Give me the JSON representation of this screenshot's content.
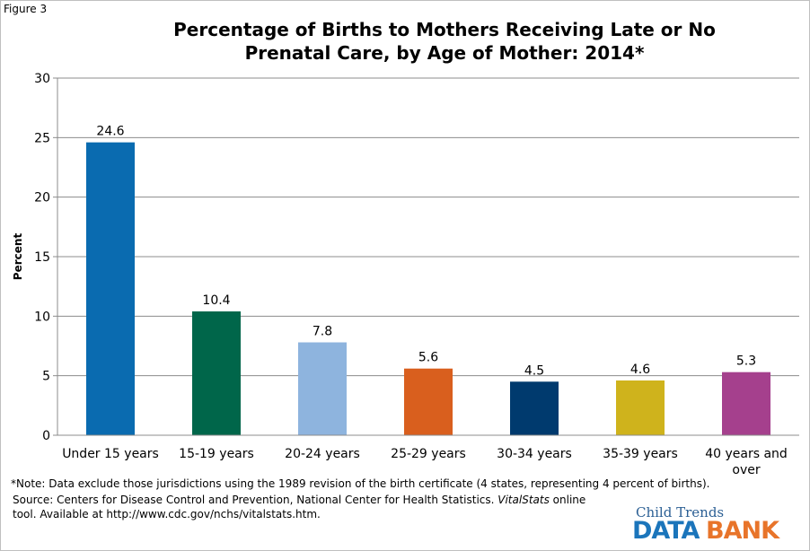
{
  "figure_label": "Figure 3",
  "title_lines": [
    "Percentage of Births to Mothers Receiving Late or No",
    "Prenatal Care, by Age of Mother: 2014*"
  ],
  "note": "*Note: Data exclude those jurisdictions using the 1989 revision of the birth certificate (4 states, representing 4 percent of births).",
  "source": {
    "prefix": "Source: Centers for Disease Control and Prevention, National Center for Health Statistics. ",
    "italic": "VitalStats",
    "suffix": " online",
    "line2": "tool. Available at http://www.cdc.gov/nchs/vitalstats.htm."
  },
  "logo": {
    "top": "Child Trends",
    "left": "DATA",
    "right": "BANK"
  },
  "chart_data": {
    "type": "bar",
    "title": "Percentage of Births to Mothers Receiving Late or No Prenatal Care, by Age of Mother: 2014*",
    "ylabel": "Percent",
    "xlabel": "",
    "ylim": [
      0,
      30
    ],
    "yticks": [
      0,
      5,
      10,
      15,
      20,
      25,
      30
    ],
    "grid": true,
    "categories": [
      "Under 15 years",
      "15-19 years",
      "20-24 years",
      "25-29 years",
      "30-34 years",
      "35-39 years",
      "40 years and over"
    ],
    "category_label_lines": [
      [
        "Under 15 years"
      ],
      [
        "15-19 years"
      ],
      [
        "20-24 years"
      ],
      [
        "25-29 years"
      ],
      [
        "30-34 years"
      ],
      [
        "35-39 years"
      ],
      [
        "40 years and",
        "over"
      ]
    ],
    "values": [
      24.6,
      10.4,
      7.8,
      5.6,
      4.5,
      4.6,
      5.3
    ],
    "data_labels": [
      "24.6",
      "10.4",
      "7.8",
      "5.6",
      "4.5",
      "4.6",
      "5.3"
    ],
    "colors": [
      "#0a6bb0",
      "#00664a",
      "#8eb4de",
      "#d95f1e",
      "#003a6e",
      "#cfb31c",
      "#a5408d"
    ]
  }
}
